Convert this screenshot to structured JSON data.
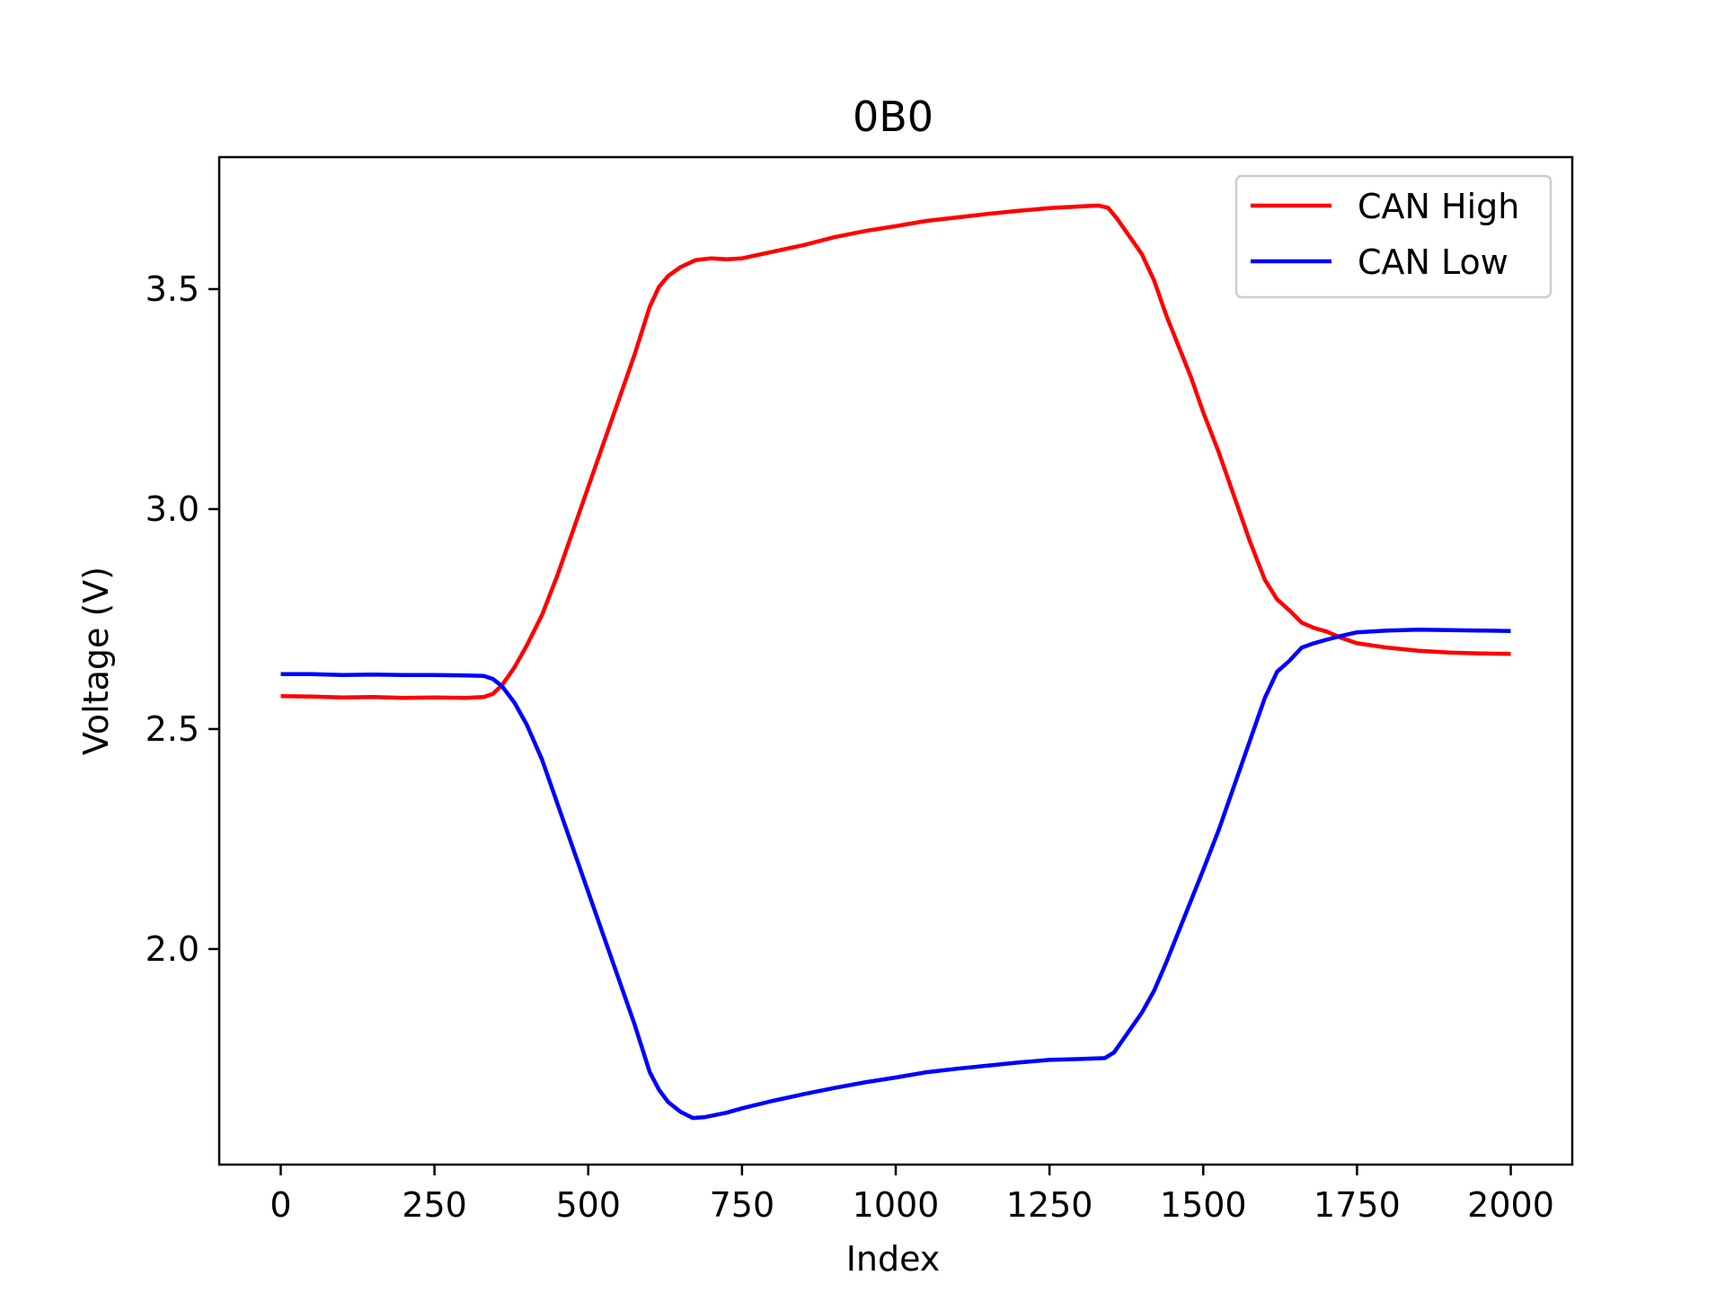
{
  "chart_data": {
    "type": "line",
    "title": "0B0",
    "xlabel": "Index",
    "ylabel": "Voltage (V)",
    "xlim": [
      -100,
      2100
    ],
    "ylim": [
      1.51,
      3.8
    ],
    "xticks": [
      0,
      250,
      500,
      750,
      1000,
      1250,
      1500,
      1750,
      2000
    ],
    "xtick_labels": [
      "0",
      "250",
      "500",
      "750",
      "1000",
      "1250",
      "1500",
      "1750",
      "2000"
    ],
    "yticks": [
      2.0,
      2.5,
      3.0,
      3.5
    ],
    "ytick_labels": [
      "2.0",
      "2.5",
      "3.0",
      "3.5"
    ],
    "grid": false,
    "legend_position": "upper right",
    "series": [
      {
        "name": "CAN High",
        "color": "#ff0000",
        "points": [
          [
            0,
            2.575
          ],
          [
            50,
            2.574
          ],
          [
            100,
            2.572
          ],
          [
            150,
            2.573
          ],
          [
            200,
            2.571
          ],
          [
            250,
            2.572
          ],
          [
            300,
            2.571
          ],
          [
            330,
            2.573
          ],
          [
            345,
            2.58
          ],
          [
            360,
            2.6
          ],
          [
            380,
            2.64
          ],
          [
            400,
            2.69
          ],
          [
            425,
            2.76
          ],
          [
            450,
            2.85
          ],
          [
            475,
            2.95
          ],
          [
            500,
            3.05
          ],
          [
            525,
            3.15
          ],
          [
            550,
            3.25
          ],
          [
            575,
            3.35
          ],
          [
            600,
            3.46
          ],
          [
            615,
            3.505
          ],
          [
            630,
            3.53
          ],
          [
            650,
            3.55
          ],
          [
            675,
            3.566
          ],
          [
            700,
            3.57
          ],
          [
            725,
            3.568
          ],
          [
            750,
            3.57
          ],
          [
            800,
            3.585
          ],
          [
            850,
            3.6
          ],
          [
            900,
            3.618
          ],
          [
            950,
            3.632
          ],
          [
            1000,
            3.643
          ],
          [
            1050,
            3.655
          ],
          [
            1100,
            3.663
          ],
          [
            1150,
            3.671
          ],
          [
            1200,
            3.678
          ],
          [
            1250,
            3.684
          ],
          [
            1300,
            3.688
          ],
          [
            1330,
            3.69
          ],
          [
            1345,
            3.685
          ],
          [
            1360,
            3.66
          ],
          [
            1380,
            3.62
          ],
          [
            1400,
            3.58
          ],
          [
            1420,
            3.52
          ],
          [
            1440,
            3.44
          ],
          [
            1460,
            3.37
          ],
          [
            1480,
            3.3
          ],
          [
            1500,
            3.22
          ],
          [
            1525,
            3.13
          ],
          [
            1550,
            3.03
          ],
          [
            1575,
            2.93
          ],
          [
            1600,
            2.84
          ],
          [
            1620,
            2.795
          ],
          [
            1640,
            2.77
          ],
          [
            1660,
            2.742
          ],
          [
            1680,
            2.73
          ],
          [
            1700,
            2.722
          ],
          [
            1725,
            2.707
          ],
          [
            1750,
            2.695
          ],
          [
            1800,
            2.685
          ],
          [
            1850,
            2.678
          ],
          [
            1900,
            2.674
          ],
          [
            1950,
            2.672
          ],
          [
            2000,
            2.671
          ]
        ]
      },
      {
        "name": "CAN Low",
        "color": "#0000ff",
        "points": [
          [
            0,
            2.625
          ],
          [
            50,
            2.625
          ],
          [
            100,
            2.623
          ],
          [
            150,
            2.624
          ],
          [
            200,
            2.623
          ],
          [
            250,
            2.623
          ],
          [
            300,
            2.622
          ],
          [
            330,
            2.621
          ],
          [
            345,
            2.614
          ],
          [
            360,
            2.597
          ],
          [
            380,
            2.56
          ],
          [
            400,
            2.51
          ],
          [
            425,
            2.43
          ],
          [
            450,
            2.33
          ],
          [
            475,
            2.23
          ],
          [
            500,
            2.13
          ],
          [
            525,
            2.03
          ],
          [
            550,
            1.93
          ],
          [
            575,
            1.83
          ],
          [
            600,
            1.72
          ],
          [
            615,
            1.68
          ],
          [
            630,
            1.652
          ],
          [
            650,
            1.63
          ],
          [
            670,
            1.616
          ],
          [
            690,
            1.618
          ],
          [
            725,
            1.628
          ],
          [
            750,
            1.638
          ],
          [
            800,
            1.655
          ],
          [
            850,
            1.67
          ],
          [
            900,
            1.684
          ],
          [
            950,
            1.697
          ],
          [
            1000,
            1.708
          ],
          [
            1050,
            1.72
          ],
          [
            1100,
            1.728
          ],
          [
            1150,
            1.735
          ],
          [
            1200,
            1.742
          ],
          [
            1250,
            1.748
          ],
          [
            1300,
            1.75
          ],
          [
            1340,
            1.752
          ],
          [
            1355,
            1.765
          ],
          [
            1375,
            1.805
          ],
          [
            1400,
            1.855
          ],
          [
            1420,
            1.905
          ],
          [
            1440,
            1.97
          ],
          [
            1460,
            2.04
          ],
          [
            1480,
            2.11
          ],
          [
            1500,
            2.18
          ],
          [
            1525,
            2.27
          ],
          [
            1550,
            2.37
          ],
          [
            1575,
            2.47
          ],
          [
            1600,
            2.57
          ],
          [
            1620,
            2.63
          ],
          [
            1640,
            2.655
          ],
          [
            1660,
            2.685
          ],
          [
            1680,
            2.695
          ],
          [
            1700,
            2.703
          ],
          [
            1725,
            2.712
          ],
          [
            1750,
            2.72
          ],
          [
            1800,
            2.724
          ],
          [
            1850,
            2.726
          ],
          [
            1900,
            2.725
          ],
          [
            1950,
            2.724
          ],
          [
            2000,
            2.723
          ]
        ]
      }
    ]
  }
}
